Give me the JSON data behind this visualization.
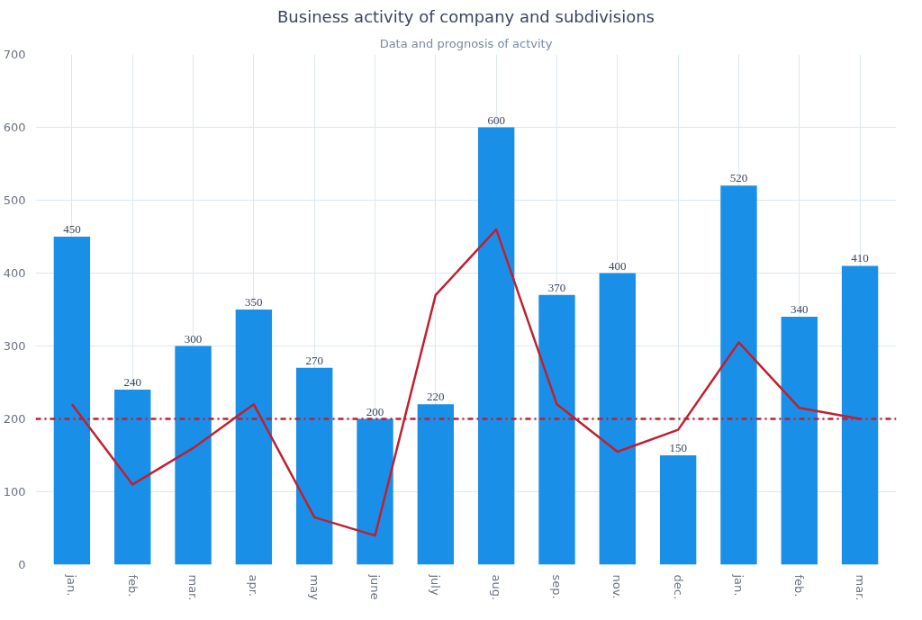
{
  "chart_data": {
    "type": "bar",
    "title": "Business activity of company and subdivisions",
    "subtitle": "Data and prognosis of actvity",
    "categories": [
      "jan.",
      "feb.",
      "mar.",
      "apr.",
      "may",
      "june",
      "july",
      "aug.",
      "sep.",
      "nov.",
      "dec.",
      "jan.",
      "feb.",
      "mar."
    ],
    "series": [
      {
        "color": "#1a8fe8",
        "values": [
          450,
          240,
          300,
          350,
          270,
          200,
          220,
          600,
          370,
          400,
          150,
          520,
          340,
          410
        ],
        "data_labels": true
      },
      {
        "type": "line",
        "color": "#c0202f",
        "values": [
          220,
          110,
          160,
          220,
          65,
          40,
          370,
          460,
          220,
          155,
          185,
          305,
          215,
          200
        ]
      }
    ],
    "ref_lines": [
      {
        "axis": "y",
        "value": 200,
        "color": "#c0202f",
        "line_style": "dashdot"
      }
    ],
    "ylim": [
      0,
      700
    ],
    "yticks": [
      0,
      100,
      200,
      300,
      400,
      500,
      600,
      700
    ],
    "grid": true,
    "marker": "none",
    "line_style": "solid"
  }
}
